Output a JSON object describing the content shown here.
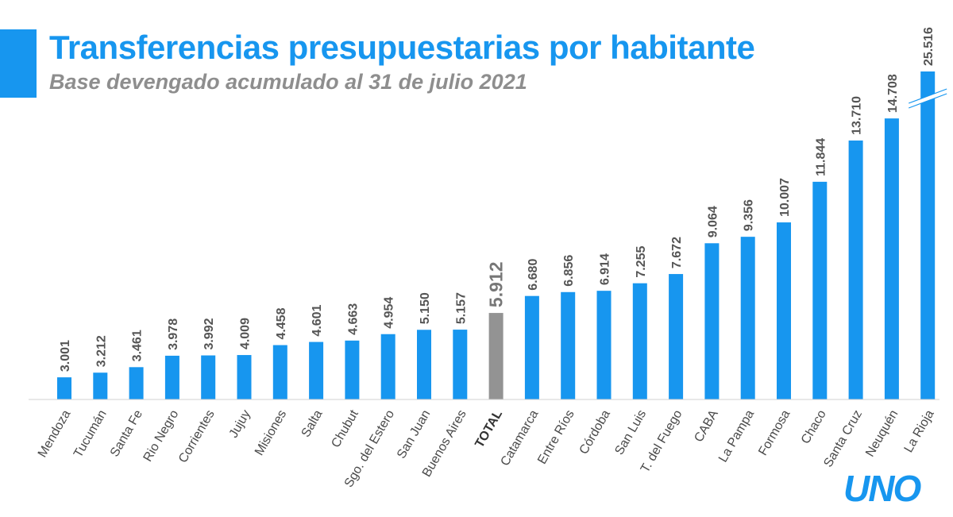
{
  "header": {
    "title": "Transferencias presupuestarias por habitante",
    "subtitle": "Base devengado acumulado al 31 de julio 2021"
  },
  "logo": {
    "text": "UNO"
  },
  "colors": {
    "accent": "#1796ef",
    "bar": "#1796ef",
    "highlight_bar": "#939393",
    "subtitle": "#8e8e8e"
  },
  "chart_data": {
    "type": "bar",
    "title": "Transferencias presupuestarias por habitante",
    "subtitle": "Base devengado acumulado al 31 de julio 2021",
    "categories": [
      "Mendoza",
      "Tucumán",
      "Santa Fe",
      "Rio Negro",
      "Corrientes",
      "Jujuy",
      "Misiones",
      "Salta",
      "Chubut",
      "Sgo. del Estero",
      "San Juan",
      "Buenos Aires",
      "TOTAL",
      "Catamarca",
      "Entre Ríos",
      "Córdoba",
      "San Luis",
      "T. del Fuego",
      "CABA",
      "La Pampa",
      "Formosa",
      "Chaco",
      "Santa Cruz",
      "Neuquén",
      "La Rioja"
    ],
    "values": [
      3001,
      3212,
      3461,
      3978,
      3992,
      4009,
      4458,
      4601,
      4663,
      4954,
      5150,
      5157,
      5912,
      6680,
      6856,
      6914,
      7255,
      7672,
      9064,
      9356,
      10007,
      11844,
      13710,
      14708,
      25516
    ],
    "value_labels": [
      "3.001",
      "3.212",
      "3.461",
      "3.978",
      "3.992",
      "4.009",
      "4.458",
      "4.601",
      "4.663",
      "4.954",
      "5.150",
      "5.157",
      "5.912",
      "6.680",
      "6.856",
      "6.914",
      "7.255",
      "7.672",
      "9.064",
      "9.356",
      "10.007",
      "11.844",
      "13.710",
      "14.708",
      "25.516"
    ],
    "highlight": "TOTAL",
    "axis_break_on": "La Rioja",
    "xlabel": "",
    "ylabel": "",
    "ylim": [
      2000,
      15000
    ],
    "grid": false,
    "legend": "none"
  }
}
